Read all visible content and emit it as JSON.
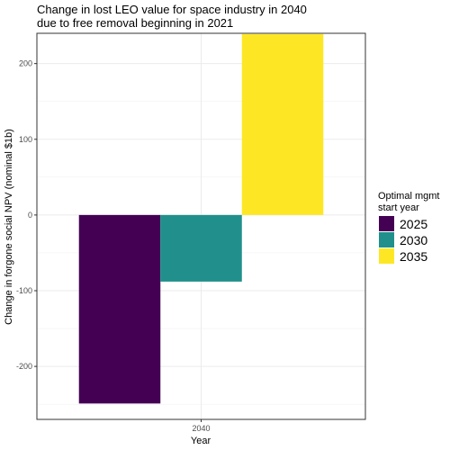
{
  "chart_data": {
    "type": "bar",
    "title_lines": [
      "Change in lost LEO value for space industry in 2040",
      "due to free removal beginning in 2021"
    ],
    "xlabel": "Year",
    "ylabel": "Change in forgone social NPV (nominal $1b)",
    "categories": [
      "2040"
    ],
    "ylim": [
      -270,
      240
    ],
    "yticks": [
      -200,
      -100,
      0,
      100,
      200
    ],
    "grid": true,
    "legend": {
      "title_lines": [
        "Optimal mgmt",
        "start year"
      ],
      "placement": "right"
    },
    "series": [
      {
        "name": "2025",
        "values": [
          -249
        ],
        "color": "#440154"
      },
      {
        "name": "2030",
        "values": [
          -88
        ],
        "color": "#21908C"
      },
      {
        "name": "2035",
        "values": [
          239
        ],
        "color": "#FDE725"
      }
    ]
  }
}
